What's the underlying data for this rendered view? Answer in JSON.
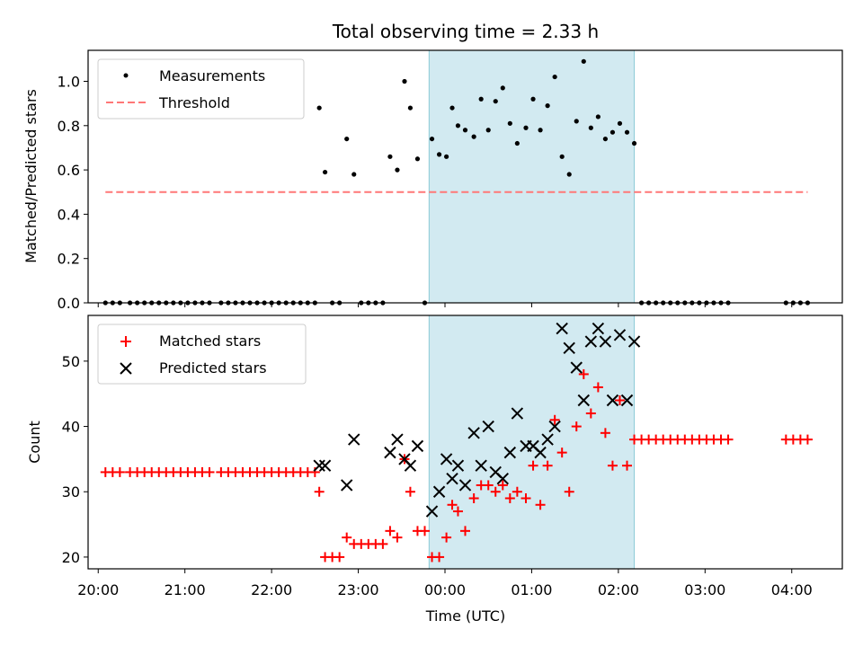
{
  "chart_data": [
    {
      "type": "scatter",
      "title": "Total observing time = 2.33 h",
      "xlabel": "",
      "ylabel": "Matched/Predicted stars",
      "xlim": [
        "19:53",
        "04:35"
      ],
      "ylim": [
        0,
        1.14
      ],
      "yticks": [
        0.0,
        0.2,
        0.4,
        0.6,
        0.8,
        1.0
      ],
      "xticks": [
        "20:00",
        "21:00",
        "22:00",
        "23:00",
        "00:00",
        "01:00",
        "02:00",
        "03:00",
        "04:00"
      ],
      "highlight_span": [
        "23:49",
        "02:11"
      ],
      "highlight_color": "#add8e6",
      "grid": false,
      "legend_position": "top-left",
      "legend": [
        "Measurements",
        "Threshold"
      ],
      "series": [
        {
          "name": "Measurements",
          "marker": "dot",
          "color": "#000000",
          "points": [
            [
              "20:05",
              0
            ],
            [
              "20:10",
              0
            ],
            [
              "20:15",
              0
            ],
            [
              "20:22",
              0
            ],
            [
              "20:27",
              0
            ],
            [
              "20:32",
              0
            ],
            [
              "20:37",
              0
            ],
            [
              "20:42",
              0
            ],
            [
              "20:47",
              0
            ],
            [
              "20:52",
              0
            ],
            [
              "20:57",
              0
            ],
            [
              "21:02",
              0
            ],
            [
              "21:07",
              0
            ],
            [
              "21:12",
              0
            ],
            [
              "21:17",
              0
            ],
            [
              "21:25",
              0
            ],
            [
              "21:30",
              0
            ],
            [
              "21:35",
              0
            ],
            [
              "21:40",
              0
            ],
            [
              "21:45",
              0
            ],
            [
              "21:50",
              0
            ],
            [
              "21:55",
              0
            ],
            [
              "22:00",
              0
            ],
            [
              "22:05",
              0
            ],
            [
              "22:10",
              0
            ],
            [
              "22:15",
              0
            ],
            [
              "22:20",
              0
            ],
            [
              "22:25",
              0
            ],
            [
              "22:30",
              0
            ],
            [
              "22:33",
              0.88
            ],
            [
              "22:37",
              0.59
            ],
            [
              "22:42",
              0
            ],
            [
              "22:47",
              0
            ],
            [
              "22:52",
              0.74
            ],
            [
              "22:57",
              0.58
            ],
            [
              "23:02",
              0
            ],
            [
              "23:07",
              0
            ],
            [
              "23:12",
              0
            ],
            [
              "23:17",
              0
            ],
            [
              "23:22",
              0.66
            ],
            [
              "23:27",
              0.6
            ],
            [
              "23:32",
              1.0
            ],
            [
              "23:36",
              0.88
            ],
            [
              "23:41",
              0.65
            ],
            [
              "23:46",
              0
            ],
            [
              "23:51",
              0.74
            ],
            [
              "23:56",
              0.67
            ],
            [
              "00:01",
              0.66
            ],
            [
              "00:05",
              0.88
            ],
            [
              "00:09",
              0.8
            ],
            [
              "00:14",
              0.78
            ],
            [
              "00:20",
              0.75
            ],
            [
              "00:25",
              0.92
            ],
            [
              "00:30",
              0.78
            ],
            [
              "00:35",
              0.91
            ],
            [
              "00:40",
              0.97
            ],
            [
              "00:45",
              0.81
            ],
            [
              "00:50",
              0.72
            ],
            [
              "00:56",
              0.79
            ],
            [
              "01:01",
              0.92
            ],
            [
              "01:06",
              0.78
            ],
            [
              "01:11",
              0.89
            ],
            [
              "01:16",
              1.02
            ],
            [
              "01:21",
              0.66
            ],
            [
              "01:26",
              0.58
            ],
            [
              "01:31",
              0.82
            ],
            [
              "01:36",
              1.09
            ],
            [
              "01:41",
              0.79
            ],
            [
              "01:46",
              0.84
            ],
            [
              "01:51",
              0.74
            ],
            [
              "01:56",
              0.77
            ],
            [
              "02:01",
              0.81
            ],
            [
              "02:06",
              0.77
            ],
            [
              "02:11",
              0.72
            ],
            [
              "02:16",
              0
            ],
            [
              "02:21",
              0
            ],
            [
              "02:26",
              0
            ],
            [
              "02:31",
              0
            ],
            [
              "02:36",
              0
            ],
            [
              "02:41",
              0
            ],
            [
              "02:46",
              0
            ],
            [
              "02:51",
              0
            ],
            [
              "02:56",
              0
            ],
            [
              "03:01",
              0
            ],
            [
              "03:06",
              0
            ],
            [
              "03:11",
              0
            ],
            [
              "03:16",
              0
            ],
            [
              "03:56",
              0
            ],
            [
              "04:01",
              0
            ],
            [
              "04:06",
              0
            ],
            [
              "04:11",
              0
            ]
          ]
        },
        {
          "name": "Threshold",
          "marker": "dashed-line",
          "color": "#ff7777",
          "points": [
            [
              "20:05",
              0.5
            ],
            [
              "04:11",
              0.5
            ]
          ]
        }
      ]
    },
    {
      "type": "scatter",
      "title": "",
      "xlabel": "Time (UTC)",
      "ylabel": "Count",
      "xlim": [
        "19:53",
        "04:35"
      ],
      "ylim": [
        18.2,
        57
      ],
      "yticks": [
        20,
        30,
        40,
        50
      ],
      "xticks": [
        "20:00",
        "21:00",
        "22:00",
        "23:00",
        "00:00",
        "01:00",
        "02:00",
        "03:00",
        "04:00"
      ],
      "highlight_span": [
        "23:49",
        "02:11"
      ],
      "highlight_color": "#add8e6",
      "grid": false,
      "legend_position": "top-left",
      "legend": [
        "Matched stars",
        "Predicted stars"
      ],
      "series": [
        {
          "name": "Matched stars",
          "marker": "plus",
          "color": "#ff0000",
          "points": [
            [
              "20:05",
              33
            ],
            [
              "20:10",
              33
            ],
            [
              "20:15",
              33
            ],
            [
              "20:22",
              33
            ],
            [
              "20:27",
              33
            ],
            [
              "20:32",
              33
            ],
            [
              "20:37",
              33
            ],
            [
              "20:42",
              33
            ],
            [
              "20:47",
              33
            ],
            [
              "20:52",
              33
            ],
            [
              "20:57",
              33
            ],
            [
              "21:02",
              33
            ],
            [
              "21:07",
              33
            ],
            [
              "21:12",
              33
            ],
            [
              "21:17",
              33
            ],
            [
              "21:25",
              33
            ],
            [
              "21:30",
              33
            ],
            [
              "21:35",
              33
            ],
            [
              "21:40",
              33
            ],
            [
              "21:45",
              33
            ],
            [
              "21:50",
              33
            ],
            [
              "21:55",
              33
            ],
            [
              "22:00",
              33
            ],
            [
              "22:05",
              33
            ],
            [
              "22:10",
              33
            ],
            [
              "22:15",
              33
            ],
            [
              "22:20",
              33
            ],
            [
              "22:25",
              33
            ],
            [
              "22:30",
              33
            ],
            [
              "22:33",
              30
            ],
            [
              "22:37",
              20
            ],
            [
              "22:42",
              20
            ],
            [
              "22:47",
              20
            ],
            [
              "22:52",
              23
            ],
            [
              "22:57",
              22
            ],
            [
              "23:02",
              22
            ],
            [
              "23:07",
              22
            ],
            [
              "23:12",
              22
            ],
            [
              "23:17",
              22
            ],
            [
              "23:22",
              24
            ],
            [
              "23:27",
              23
            ],
            [
              "23:32",
              35
            ],
            [
              "23:36",
              30
            ],
            [
              "23:41",
              24
            ],
            [
              "23:46",
              24
            ],
            [
              "23:51",
              20
            ],
            [
              "23:56",
              20
            ],
            [
              "00:01",
              23
            ],
            [
              "00:05",
              28
            ],
            [
              "00:09",
              27
            ],
            [
              "00:14",
              24
            ],
            [
              "00:20",
              29
            ],
            [
              "00:25",
              31
            ],
            [
              "00:30",
              31
            ],
            [
              "00:35",
              30
            ],
            [
              "00:40",
              31
            ],
            [
              "00:45",
              29
            ],
            [
              "00:50",
              30
            ],
            [
              "00:56",
              29
            ],
            [
              "01:01",
              34
            ],
            [
              "01:06",
              28
            ],
            [
              "01:11",
              34
            ],
            [
              "01:16",
              41
            ],
            [
              "01:21",
              36
            ],
            [
              "01:26",
              30
            ],
            [
              "01:31",
              40
            ],
            [
              "01:36",
              48
            ],
            [
              "01:41",
              42
            ],
            [
              "01:46",
              46
            ],
            [
              "01:51",
              39
            ],
            [
              "01:56",
              34
            ],
            [
              "02:01",
              44
            ],
            [
              "02:06",
              34
            ],
            [
              "02:11",
              38
            ],
            [
              "02:16",
              38
            ],
            [
              "02:21",
              38
            ],
            [
              "02:26",
              38
            ],
            [
              "02:31",
              38
            ],
            [
              "02:36",
              38
            ],
            [
              "02:41",
              38
            ],
            [
              "02:46",
              38
            ],
            [
              "02:51",
              38
            ],
            [
              "02:56",
              38
            ],
            [
              "03:01",
              38
            ],
            [
              "03:06",
              38
            ],
            [
              "03:11",
              38
            ],
            [
              "03:16",
              38
            ],
            [
              "03:56",
              38
            ],
            [
              "04:01",
              38
            ],
            [
              "04:06",
              38
            ],
            [
              "04:11",
              38
            ]
          ]
        },
        {
          "name": "Predicted stars",
          "marker": "x",
          "color": "#000000",
          "points": [
            [
              "22:33",
              34
            ],
            [
              "22:37",
              34
            ],
            [
              "22:52",
              31
            ],
            [
              "22:57",
              38
            ],
            [
              "23:22",
              36
            ],
            [
              "23:27",
              38
            ],
            [
              "23:32",
              35
            ],
            [
              "23:36",
              34
            ],
            [
              "23:41",
              37
            ],
            [
              "23:51",
              27
            ],
            [
              "23:56",
              30
            ],
            [
              "00:01",
              35
            ],
            [
              "00:05",
              32
            ],
            [
              "00:09",
              34
            ],
            [
              "00:14",
              31
            ],
            [
              "00:20",
              39
            ],
            [
              "00:25",
              34
            ],
            [
              "00:30",
              40
            ],
            [
              "00:35",
              33
            ],
            [
              "00:40",
              32
            ],
            [
              "00:45",
              36
            ],
            [
              "00:50",
              42
            ],
            [
              "00:56",
              37
            ],
            [
              "01:01",
              37
            ],
            [
              "01:06",
              36
            ],
            [
              "01:11",
              38
            ],
            [
              "01:16",
              40
            ],
            [
              "01:21",
              55
            ],
            [
              "01:26",
              52
            ],
            [
              "01:31",
              49
            ],
            [
              "01:36",
              44
            ],
            [
              "01:41",
              53
            ],
            [
              "01:46",
              55
            ],
            [
              "01:51",
              53
            ],
            [
              "01:56",
              44
            ],
            [
              "02:01",
              54
            ],
            [
              "02:06",
              44
            ],
            [
              "02:11",
              53
            ]
          ]
        }
      ]
    }
  ]
}
